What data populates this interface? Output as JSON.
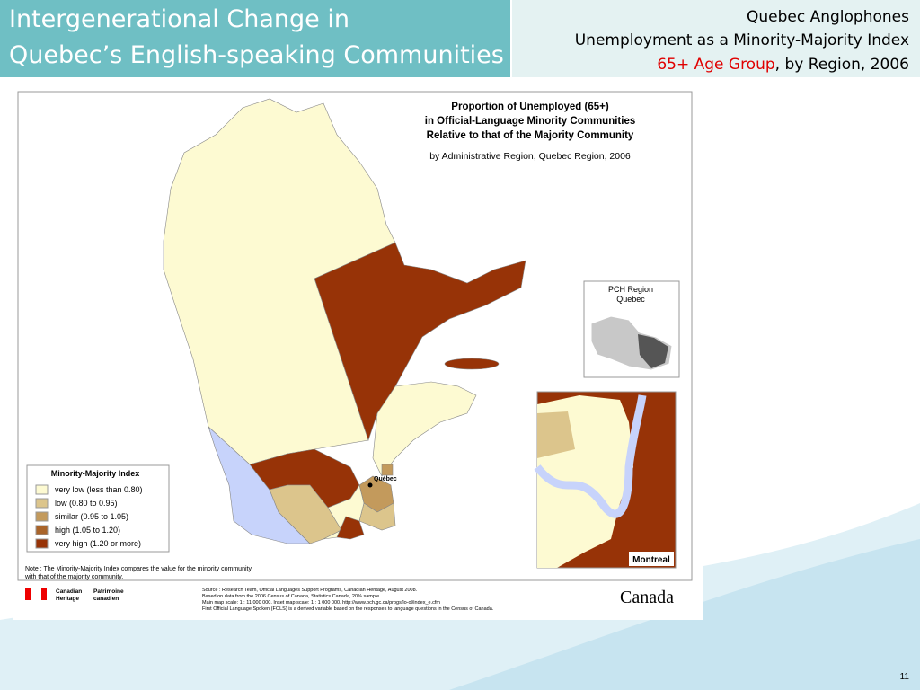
{
  "header": {
    "title_lines": [
      "Intergenerational Change in",
      "Quebec’s English-speaking Communities"
    ],
    "subtitle_lines": [
      "Quebec Anglophones",
      "Unemployment as a Minority-Majority Index"
    ],
    "subtitle_highlight": "65+ Age Group",
    "subtitle_rest": ", by Region, 2006"
  },
  "map": {
    "title_lines": [
      "Proportion of Unemployed (65+)",
      "in Official-Language Minority Communities",
      "Relative to that of the Majority Community"
    ],
    "subtitle": "by Administrative Region, Quebec Region, 2006",
    "city_label": "Québec",
    "inset_title_lines": [
      "PCH Region",
      "Quebec"
    ],
    "montreal_label": "Montreal",
    "legend": {
      "title": "Minority-Majority Index",
      "items": [
        {
          "label": "very low (less than 0.80)",
          "color": "#fdfad2"
        },
        {
          "label": "low (0.80 to 0.95)",
          "color": "#dcc58c"
        },
        {
          "label": "similar (0.95 to 1.05)",
          "color": "#c39a5c"
        },
        {
          "label": "high (1.05 to 1.20)",
          "color": "#a9642a"
        },
        {
          "label": "very high (1.20 or more)",
          "color": "#973307"
        }
      ]
    },
    "note_lines": [
      "Note : The Minority-Majority Index compares the value for the minority community",
      "with that of the majority community."
    ],
    "source_lines": [
      "Source : Research Team, Official Languages Support Programs, Canadian Heritage,  August 2008.",
      "Based on data from the 2006 Census of Canada, Statistics Canada, 20% sample.",
      "Main map scale: 1 : 11 000 000. Inset map scale: 1 : 1 000 000. http://www.pch.gc.ca/progs/lo-ol/index_e.cfm",
      "First Official Language Spoken (FOLS) is a derived variable based on the responses to language questions in the Census of Canada."
    ],
    "logo_en": [
      "Canadian",
      "Heritage"
    ],
    "logo_fr": [
      "Patrimoine",
      "canadien"
    ],
    "wordmark": "Canada"
  },
  "page_number": "11"
}
